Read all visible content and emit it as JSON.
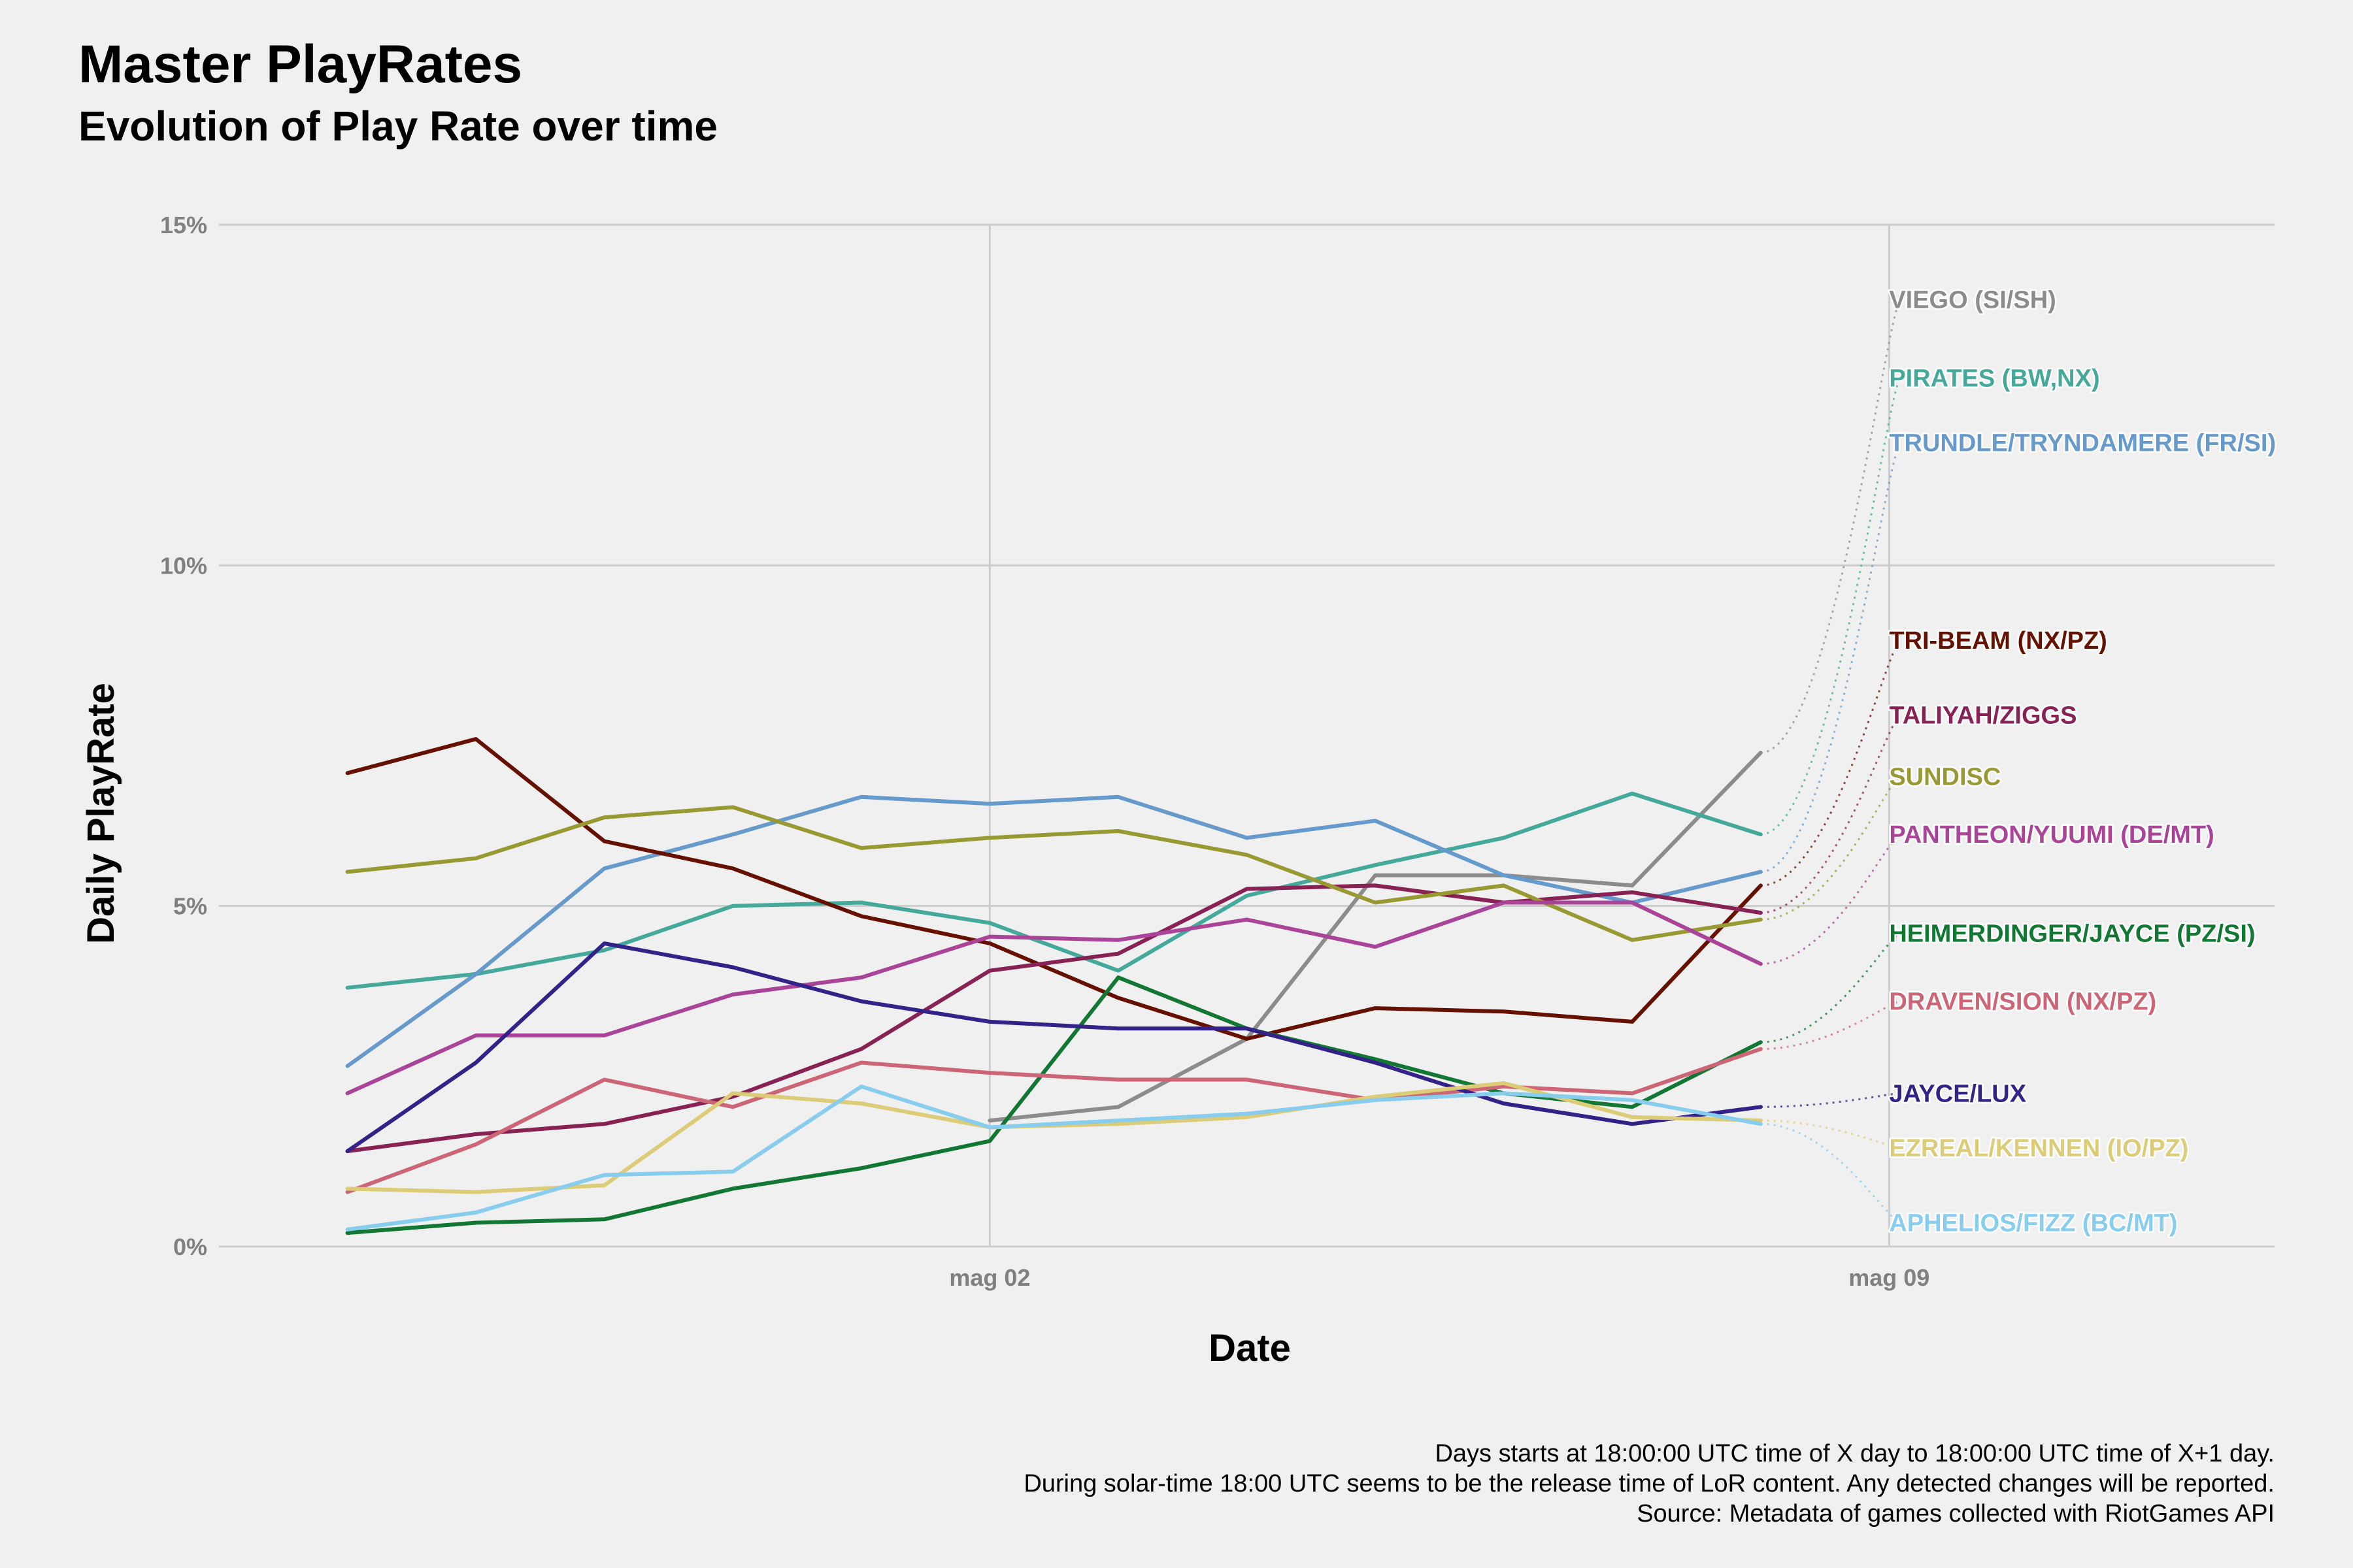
{
  "chart_data": {
    "type": "line",
    "title": "Master PlayRates",
    "subtitle": "Evolution of Play Rate over time",
    "xlabel": "Date",
    "ylabel": "Daily PlayRate",
    "x": [
      "2021-04-27",
      "2021-04-28",
      "2021-04-29",
      "2021-04-30",
      "2021-05-01",
      "2021-05-02",
      "2021-05-03",
      "2021-05-04",
      "2021-05-05",
      "2021-05-06",
      "2021-05-07",
      "2021-05-08"
    ],
    "x_ticks": [
      {
        "value": "2021-05-02",
        "label": "mag 02"
      },
      {
        "value": "2021-05-09",
        "label": "mag 09"
      }
    ],
    "xlim": [
      "2021-04-26",
      "2021-05-12"
    ],
    "ylim": [
      0,
      15
    ],
    "y_ticks": [
      {
        "value": 0,
        "label": "0%"
      },
      {
        "value": 5,
        "label": "5%"
      },
      {
        "value": 10,
        "label": "10%"
      },
      {
        "value": 15,
        "label": "15%"
      }
    ],
    "grid": true,
    "legend": "none",
    "series": [
      {
        "name": "VIEGO (SI/SH)",
        "color": "#8c8c8c",
        "label_value": 13.9,
        "values": [
          null,
          null,
          null,
          null,
          null,
          1.85,
          2.05,
          3.05,
          5.45,
          5.45,
          5.3,
          7.25
        ]
      },
      {
        "name": "PIRATES (BW,NX)",
        "color": "#44a99b",
        "label_value": 12.75,
        "values": [
          3.8,
          4.0,
          4.35,
          5.0,
          5.05,
          4.75,
          4.05,
          5.15,
          5.6,
          6.0,
          6.65,
          6.05
        ]
      },
      {
        "name": "TRUNDLE/TRYNDAMERE (FR/SI)",
        "color": "#6699cc",
        "label_value": 11.8,
        "values": [
          2.65,
          4.0,
          5.55,
          6.05,
          6.6,
          6.5,
          6.6,
          6.0,
          6.25,
          5.45,
          5.05,
          5.5
        ]
      },
      {
        "name": "TRI-BEAM (NX/PZ)",
        "color": "#661100",
        "label_value": 8.9,
        "values": [
          6.95,
          7.45,
          5.95,
          5.55,
          4.85,
          4.45,
          3.65,
          3.05,
          3.5,
          3.45,
          3.3,
          5.3
        ]
      },
      {
        "name": "TALIYAH/ZIGGS",
        "color": "#882255",
        "label_value": 7.8,
        "values": [
          1.4,
          1.65,
          1.8,
          2.2,
          2.9,
          4.05,
          4.3,
          5.25,
          5.3,
          5.05,
          5.2,
          4.9
        ]
      },
      {
        "name": "SUNDISC",
        "color": "#999933",
        "label_value": 6.9,
        "values": [
          5.5,
          5.7,
          6.3,
          6.45,
          5.85,
          6.0,
          6.1,
          5.75,
          5.05,
          5.3,
          4.5,
          4.8
        ]
      },
      {
        "name": "PANTHEON/YUUMI (DE/MT)",
        "color": "#aa4499",
        "label_value": 6.05,
        "values": [
          2.25,
          3.1,
          3.1,
          3.7,
          3.95,
          4.55,
          4.5,
          4.8,
          4.4,
          5.05,
          5.05,
          4.15
        ]
      },
      {
        "name": "HEIMERDINGER/JAYCE (PZ/SI)",
        "color": "#117733",
        "label_value": 4.6,
        "values": [
          0.2,
          0.35,
          0.4,
          0.85,
          1.15,
          1.55,
          3.95,
          3.2,
          2.75,
          2.25,
          2.05,
          3.0
        ]
      },
      {
        "name": "DRAVEN/SION (NX/PZ)",
        "color": "#cc6677",
        "label_value": 3.6,
        "values": [
          0.8,
          1.5,
          2.45,
          2.05,
          2.7,
          2.55,
          2.45,
          2.45,
          2.15,
          2.35,
          2.25,
          2.9
        ]
      },
      {
        "name": "JAYCE/LUX",
        "color": "#332288",
        "label_value": 2.25,
        "values": [
          1.4,
          2.7,
          4.45,
          4.1,
          3.6,
          3.3,
          3.2,
          3.2,
          2.7,
          2.1,
          1.8,
          2.05
        ]
      },
      {
        "name": "EZREAL/KENNEN (IO/PZ)",
        "color": "#ddcc77",
        "label_value": 1.45,
        "values": [
          0.85,
          0.8,
          0.9,
          2.25,
          2.1,
          1.75,
          1.8,
          1.9,
          2.2,
          2.4,
          1.9,
          1.85
        ]
      },
      {
        "name": "APHELIOS/FIZZ (BC/MT)",
        "color": "#88ccee",
        "label_value": 0.35,
        "values": [
          0.25,
          0.5,
          1.05,
          1.1,
          2.35,
          1.75,
          1.85,
          1.95,
          2.15,
          2.25,
          2.15,
          1.8
        ]
      }
    ]
  },
  "caption": {
    "line1": "Days starts at 18:00:00 UTC time of X day to 18:00:00 UTC time of X+1 day.",
    "line2": "During solar-time 18:00 UTC seems to be the release time of LoR content. Any detected changes will be reported.",
    "line3": "Source: Metadata of games collected with RiotGames API"
  }
}
